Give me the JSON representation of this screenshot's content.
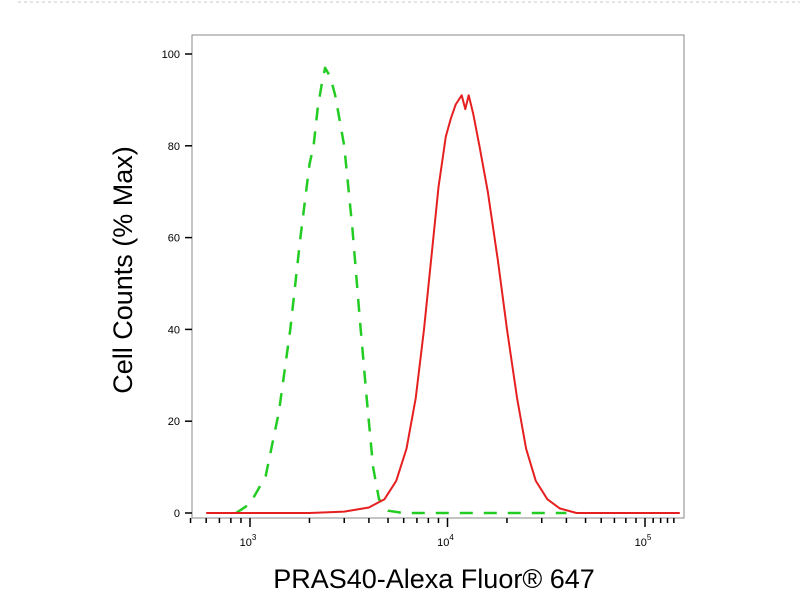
{
  "chart_data": {
    "type": "line",
    "title": "",
    "xlabel": "PRAS40-Alexa Fluor® 647",
    "ylabel": "Cell Counts (% Max)",
    "x_scale": "log",
    "xlim": [
      500,
      150000
    ],
    "ylim": [
      0,
      104
    ],
    "y_ticks": [
      {
        "value": 0,
        "label": "0"
      },
      {
        "value": 20,
        "label": "20"
      },
      {
        "value": 40,
        "label": "40"
      },
      {
        "value": 60,
        "label": "60"
      },
      {
        "value": 80,
        "label": "80"
      },
      {
        "value": 100,
        "label": "100"
      }
    ],
    "x_major_ticks": [
      {
        "value": 1000,
        "base": "10",
        "exp": "3"
      },
      {
        "value": 10000,
        "base": "10",
        "exp": "4"
      },
      {
        "value": 100000,
        "base": "10",
        "exp": "5"
      }
    ],
    "x_minor_ticks": [
      500,
      600,
      700,
      800,
      900,
      2000,
      3000,
      4000,
      5000,
      6000,
      7000,
      8000,
      9000,
      20000,
      30000,
      40000,
      50000,
      60000,
      70000,
      80000,
      90000,
      110000,
      120000,
      130000,
      140000
    ],
    "grid": false,
    "legend": "none",
    "series": [
      {
        "color": "#22cc22",
        "style": "dashed",
        "points": [
          [
            850,
            0
          ],
          [
            1000,
            2
          ],
          [
            1200,
            8
          ],
          [
            1400,
            22
          ],
          [
            1600,
            40
          ],
          [
            1800,
            60
          ],
          [
            2000,
            76
          ],
          [
            2100,
            80
          ],
          [
            2200,
            88
          ],
          [
            2300,
            93
          ],
          [
            2400,
            97
          ],
          [
            2550,
            95
          ],
          [
            2700,
            91
          ],
          [
            3000,
            80
          ],
          [
            3300,
            62
          ],
          [
            3600,
            42
          ],
          [
            3900,
            25
          ],
          [
            4200,
            10
          ],
          [
            4500,
            3
          ],
          [
            5000,
            0.5
          ],
          [
            6000,
            0
          ],
          [
            20000,
            0
          ],
          [
            40000,
            0
          ]
        ]
      },
      {
        "color": "#e62020",
        "style": "solid",
        "points": [
          [
            600,
            0
          ],
          [
            1000,
            0
          ],
          [
            2000,
            0
          ],
          [
            3000,
            0.3
          ],
          [
            4000,
            1.2
          ],
          [
            4800,
            3
          ],
          [
            5500,
            7
          ],
          [
            6200,
            14
          ],
          [
            6900,
            25
          ],
          [
            7600,
            40
          ],
          [
            8300,
            56
          ],
          [
            9000,
            71
          ],
          [
            9800,
            82
          ],
          [
            10400,
            86
          ],
          [
            11000,
            89
          ],
          [
            11800,
            91
          ],
          [
            12300,
            88
          ],
          [
            12800,
            91
          ],
          [
            13500,
            87
          ],
          [
            14500,
            80
          ],
          [
            16000,
            70
          ],
          [
            18000,
            55
          ],
          [
            20000,
            40
          ],
          [
            22500,
            25
          ],
          [
            25000,
            14
          ],
          [
            28000,
            7
          ],
          [
            32000,
            3
          ],
          [
            37000,
            1
          ],
          [
            45000,
            0
          ],
          [
            60000,
            0
          ],
          [
            100000,
            0
          ],
          [
            150000,
            0
          ]
        ]
      }
    ]
  }
}
